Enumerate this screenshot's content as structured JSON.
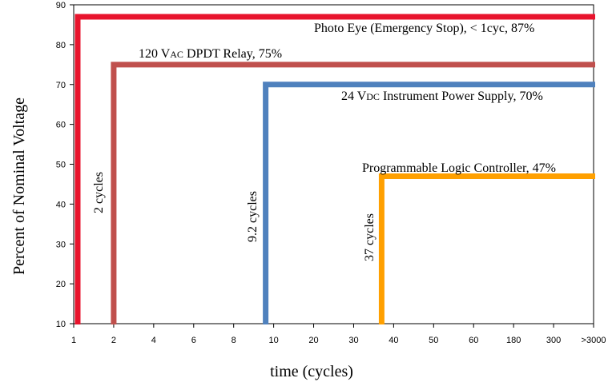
{
  "chart_data": {
    "type": "line",
    "title": "",
    "xlabel": "time (cycles)",
    "ylabel": "Percent of Nominal Voltage",
    "x_ticks": [
      "1",
      "2",
      "4",
      "6",
      "8",
      "10",
      "20",
      "30",
      "40",
      "50",
      "60",
      "180",
      "300",
      ">3000"
    ],
    "ylim": [
      10,
      90
    ],
    "y_ticks": [
      10,
      20,
      30,
      40,
      50,
      60,
      70,
      80,
      90
    ],
    "grid": false,
    "series": [
      {
        "name": "Photo Eye (Emergency Stop), < 1cyc, 87%",
        "label": "Photo Eye (Emergency Stop), < 1cyc, 87%",
        "color": "#e8142d",
        "threshold_percent": 87,
        "x_tick_index": 0.1,
        "cycle_label": ""
      },
      {
        "name": "120 VAC DPDT Relay, 75%",
        "label_prefix": "120 V",
        "label_sub": "AC",
        "label_suffix": " DPDT Relay, 75%",
        "color": "#c0504d",
        "threshold_percent": 75,
        "x_tick_index": 1.0,
        "cycle_label": "2 cycles"
      },
      {
        "name": "24 VDC Instrument Power Supply, 70%",
        "label_prefix": "24 V",
        "label_sub": "DC",
        "label_suffix": " Instrument Power  Supply, 70%",
        "color": "#4f81bd",
        "threshold_percent": 70,
        "x_tick_index": 4.8,
        "cycle_label": "9.2 cycles"
      },
      {
        "name": "Programmable Logic Controller, 47%",
        "label": "Programmable Logic Controller, 47%",
        "color": "#ffa000",
        "threshold_percent": 47,
        "x_tick_index": 7.7,
        "cycle_label": "37 cycles"
      }
    ]
  }
}
